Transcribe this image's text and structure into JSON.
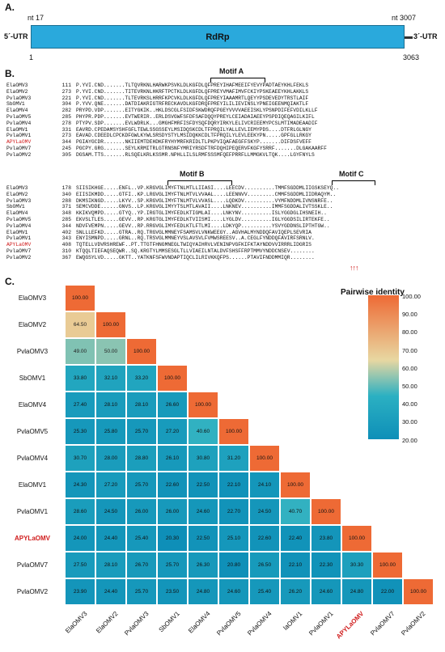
{
  "panels": {
    "a": "A.",
    "b": "B.",
    "c": "C."
  },
  "genome": {
    "utr5": "5´-UTR",
    "utr3": "3´-UTR",
    "orf_label": "RdRp",
    "nt_start": "nt 17",
    "nt_end": "nt 3007",
    "pos_start": "1",
    "pos_end": "3063",
    "color": "#2aa9dc"
  },
  "motifs": {
    "a": "Motif A",
    "b": "Motif B",
    "c": "Motif C"
  },
  "alignment_top": [
    {
      "name": "ElaOMV3",
      "pos": "111",
      "seq": "P.YVI.CND.......TLTQVRKNLHARWKPSVKLDLKGFDLQFPREYIHAFMEEIFYEVYPADTAEYKHLFEKLS"
    },
    {
      "name": "ElaOMV2",
      "pos": "273",
      "seq": "P.YVI.CND.......TITEVRKNLHKRFTPCTKLDLKGFDLQFPREYVMAFIMVFCKIYPSKEAEEYKHLAKKLS"
    },
    {
      "name": "PvlaOMV3",
      "pos": "221",
      "seq": "P.YVI.CND.......TLTEVRKSLHRRFKPCVKLDLKGFDLQFPREYIAAAMRTLQEYYPSDEVEDYTRSTLAIF"
    },
    {
      "name": "SbOMV1",
      "pos": "304",
      "seq": "P.YVV.QNE.......DATDIAKRIGTRFRECKAVDLKGFDRQFPREYILILIEVINSLYPNEIGEENMQIAKTLF"
    },
    {
      "name": "ElaOMV4",
      "pos": "282",
      "seq": "PRYPD.VDP.......EITYGKIK..HKLDSCGLFSIDFSKWDRQFPGEYVVVVAEEISKLYPSNPDIFEFVDILKLLF"
    },
    {
      "name": "PvlaOMV5",
      "pos": "285",
      "seq": "PHYPR.PDP.......EVTWERIR..ERLDSVGWFSFDFSAFDQQYPREYLCEIADAIAEEYPSPDIQEQAGILKIFL"
    },
    {
      "name": "PvlaOMV4",
      "pos": "278",
      "seq": "PTYPV.SDP.......EVLWDRLK...GMGHFMRFISFDYSQFDQRYIRKYLELIVCRIEEMYPCSLMTIMADEAADIF"
    },
    {
      "name": "ElaOMV1",
      "pos": "331",
      "seq": "EAVRD.CPEDAMSYSHFGFLTEWLSSGSSEYLMSIDQSKCDLTFPRQILYALLEVLIEMYPDS....DTFRLGLNGY"
    },
    {
      "name": "PvlaOMV1",
      "pos": "273",
      "seq": "EAVAD.CDEEDLCPCKDFGWLKYWLSRSDYSTYLMSIDQKKCDLTFPRQILYLEVLEEKYPN.....GPFGLLRKGY"
    },
    {
      "name": "APYLaOMV",
      "pos": "344",
      "seq": "PGIAYGCDR.......NKIIEMTDEHDKFRYHYMRFKRIDLTLPKPVIQAFAEGFFSKYP.......DIFDSFVEFF"
    },
    {
      "name": "PvlaOMV7",
      "pos": "245",
      "seq": "PGCPY.GRG.......SEYLKRMITRLGTRNSNFYMRIYRSDFTRFDQHIPEQERVFKGFYSRRF.......DLGAKAARFF"
    },
    {
      "name": "PvlaOMV2",
      "pos": "305",
      "seq": "DGSAM.TTS.......RLSQELKRLKSSMR.NPHLLILSLRMFSSSMFQEFPRRFLLMMGKVLTQK....LGYFNYLS"
    }
  ],
  "alignment_bottom": [
    {
      "name": "ElaOMV3",
      "pos": "178",
      "seq": "SIISIKHGE.....ENFL..VP.KRGVGLIMYFTNLMTLLIIASI....LEECDV..........TMMFSGDDMLIIGSKSEYQ.."
    },
    {
      "name": "ElaOMV2",
      "pos": "340",
      "seq": "EIISIKMDD.....GTFI..KP.LRGVGLIMYFTNLMTVLVVAAL....LEENNVV.........CMMFSGDDMLIIDRAQYM.."
    },
    {
      "name": "PvlaOMV3",
      "pos": "288",
      "seq": "DKMSIKNGD.....LKYV..SP.KRGVGLIMYFTNLMTVLVVASL....LQDKDV..........VYMFNDDMLIVNSNRFE.."
    },
    {
      "name": "SbOMV1",
      "pos": "371",
      "seq": "SEMCVDDE......GNVS..LP.KRGVGLIMYYTSLMTLAVAII....LNKNEV..........IMMFSGDDALIVTSSKLE.."
    },
    {
      "name": "ElaOMV4",
      "pos": "348",
      "seq": "KKIKVQMPD.....GTYQ..YP.IRGTGLIMYFEDLKTIGMLAI....LNKYNV..........ISLYGGDGLIHSNEIH.."
    },
    {
      "name": "PvlaOMV5",
      "pos": "285",
      "seq": "EKVSLTLES.....GEVV..RP.KRGTGLIMYFEDLKTVIISMI....LYGLDV..........IGLYGGDSILIRTEKFE.."
    },
    {
      "name": "PvlaOMV4",
      "pos": "344",
      "seq": "NDVFVEMPN.....GEVV..RP.RRGVGLIMYFEDLKTLFTLMI....LDKYQP..........YSVYGDDNSLIPTHTGW.."
    },
    {
      "name": "ElaOMV1",
      "pos": "402",
      "seq": "SNLLLEFKD.....GTRA..RQ.TRGVGLMMNEYFSAMSVLVNKWEEGY..AGVHALMYNDDQFAVIQEPLSEVRIA"
    },
    {
      "name": "PvlaOMV1",
      "pos": "343",
      "seq": "ENYISMNPD.....GRNL..RQ.TRSVGLMMNEYVSLAVSVLFVMWSREESV..A.CEGLFYNDDQFAVIRFSRNLV."
    },
    {
      "name": "APYLaOMV",
      "pos": "408",
      "seq": "TQTELLVDVRSHREWF..PT.TTGTFHNGMNEGLTWIQYAIHRVLVENINPVGFKIFKTAYNDDVVIRRRLIDGRIS"
    },
    {
      "name": "PvlaOMV7",
      "pos": "310",
      "seq": "KTQQLTIEFAQSEQWR..SQ.KRGTYLMMSESGLTLLVIAEILNTALDVFSHSFFRPTMMVYNDDCNSEV........"
    },
    {
      "name": "PvlaOMV2",
      "pos": "367",
      "seq": "EWQGSYLVD.....GKTT..YATKNFSFWVNDAPTIQCLILRIVKKQFPS......PTAVIFNDDMMIQR........"
    }
  ],
  "heatmap": {
    "legend_title": "Pairwise identity",
    "legend_ticks": [
      "100.00",
      "90.00",
      "80.00",
      "70.00",
      "60.00",
      "50.00",
      "40.00",
      "30.00",
      "20.00"
    ],
    "highlight_label": "APYLaOMV",
    "highlight_color": "#d01c1c",
    "colors": {
      "low": "#0e8fb8",
      "mid": "#e8d7a1",
      "high": "#ee6a35"
    },
    "row_labels": [
      "ElaOMV3",
      "ElaOMV2",
      "PvlaOMV3",
      "SbOMV1",
      "ElaOMV4",
      "PvlaOMV5",
      "PvlaOMV4",
      "ElaOMV1",
      "PvlaOMV1",
      "APYLaOMV",
      "PvlaOMV7",
      "PvlaOMV2"
    ],
    "col_labels": [
      "ElaOMV3",
      "ElaOMV2",
      "PvlaOMV3",
      "SbOMV1",
      "ElaOMV4",
      "PvlaOMV5",
      "PvlaOMV4",
      "laOMV1",
      "PvlaOMV1",
      "APYLaOMV",
      "PvlaOMV7",
      "PvlaOMV2"
    ],
    "values": [
      [
        "100.00"
      ],
      [
        "64.50",
        "100.00"
      ],
      [
        "49.00",
        "50.00",
        "100.00"
      ],
      [
        "33.80",
        "32.10",
        "33.20",
        "100.00"
      ],
      [
        "27.40",
        "28.10",
        "28.10",
        "26.60",
        "100.00"
      ],
      [
        "25.30",
        "25.80",
        "25.70",
        "27.20",
        "40.60",
        "100.00"
      ],
      [
        "30.70",
        "28.00",
        "28.80",
        "26.10",
        "30.80",
        "31.20",
        "100.00"
      ],
      [
        "24.30",
        "27.20",
        "25.70",
        "22.60",
        "22.50",
        "22.10",
        "24.10",
        "100.00"
      ],
      [
        "28.60",
        "24.50",
        "26.00",
        "26.00",
        "24.60",
        "22.70",
        "24.50",
        "40.70",
        "100.00"
      ],
      [
        "24.00",
        "24.40",
        "25.40",
        "20.30",
        "22.50",
        "25.10",
        "22.60",
        "22.40",
        "23.80",
        "100.00"
      ],
      [
        "27.50",
        "28.10",
        "26.70",
        "25.70",
        "26.30",
        "20.80",
        "26.50",
        "22.10",
        "22.30",
        "30.30",
        "100.00"
      ],
      [
        "23.90",
        "24.40",
        "25.70",
        "23.50",
        "24.80",
        "24.60",
        "25.40",
        "26.20",
        "24.60",
        "24.80",
        "22.00",
        "100.00"
      ]
    ]
  }
}
